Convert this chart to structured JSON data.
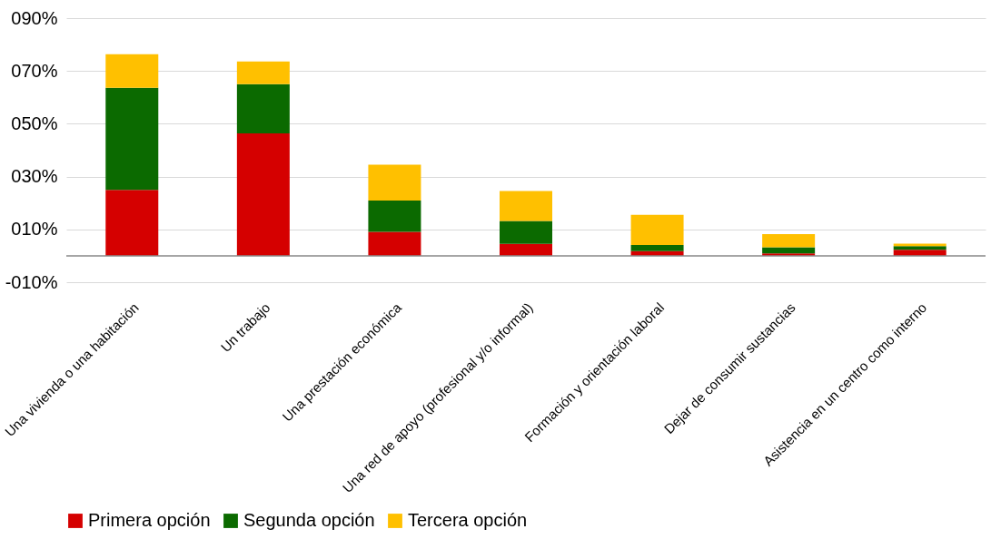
{
  "chart_data": {
    "type": "bar",
    "stacked": true,
    "categories": [
      "Una vivienda o una habitación",
      "Un trabajo",
      "Una prestación económica",
      "Una red de apoyo (profesional y/o informal)",
      "Formación y orientación laboral",
      "Dejar de consumir sustancias",
      "Asistencia en un centro como interno"
    ],
    "series": [
      {
        "name": "Primera opción",
        "color": "#d50000",
        "values": [
          25,
          46.4,
          9.1,
          4.5,
          1.8,
          0.9,
          2.3
        ]
      },
      {
        "name": "Segunda opción",
        "color": "#0b6a00",
        "values": [
          38.6,
          18.6,
          11.8,
          8.7,
          2.3,
          2.3,
          1.4
        ]
      },
      {
        "name": "Tercera opción",
        "color": "#ffc000",
        "values": [
          12.7,
          8.6,
          13.6,
          11.3,
          11.4,
          5.0,
          0.9
        ]
      }
    ],
    "ylim": [
      -10,
      90
    ],
    "yticks": [
      {
        "value": -10,
        "label": "-010%"
      },
      {
        "value": 10,
        "label": "010%"
      },
      {
        "value": 30,
        "label": "030%"
      },
      {
        "value": 50,
        "label": "050%"
      },
      {
        "value": 70,
        "label": "070%"
      },
      {
        "value": 90,
        "label": "090%"
      }
    ],
    "ref_lines": [
      {
        "axis": "y",
        "value": 0,
        "color": "#888888"
      }
    ],
    "grid": "y",
    "legend": "bottom"
  }
}
